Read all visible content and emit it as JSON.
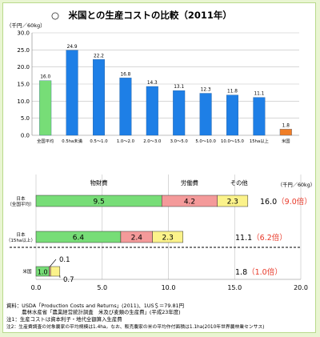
{
  "title": "○　米国との生産コストの比較（2011年）",
  "colors": {
    "bar_blue": "#1e7fe6",
    "bar_green": "#77dd77",
    "bar_orange": "#f07e26",
    "seg_material": "#77dd77",
    "seg_labor": "#f49a9a",
    "seg_other": "#fbf28a",
    "accent_red": "#e83828",
    "grid": "#bfbfbf"
  },
  "chart_data": [
    {
      "type": "bar",
      "title": "",
      "ylabel": "（千円／60kg）",
      "ylim": [
        0,
        30
      ],
      "yticks": [
        "0.0",
        "5.0",
        "10.0",
        "15.0",
        "20.0",
        "25.0",
        "30.0"
      ],
      "categories": [
        "全国平均",
        "0.5ha未満",
        "0.5～1.0",
        "1.0～2.0",
        "2.0～3.0",
        "3.0～5.0",
        "5.0～10.0",
        "10.0～15.0",
        "15ha以上",
        "米国"
      ],
      "values": [
        16.0,
        24.9,
        22.2,
        16.8,
        14.3,
        13.1,
        12.3,
        11.8,
        11.1,
        1.8
      ],
      "value_labels": [
        "16.0",
        "24.9",
        "22.2",
        "16.8",
        "14.3",
        "13.1",
        "12.3",
        "11.8",
        "11.1",
        "1.8"
      ],
      "bar_colors": [
        "green",
        "blue",
        "blue",
        "blue",
        "blue",
        "blue",
        "blue",
        "blue",
        "blue",
        "orange"
      ],
      "grid": true
    },
    {
      "type": "bar",
      "orientation": "horizontal",
      "stacked": true,
      "unit": "（千円／60kg）",
      "xlim": [
        0,
        20
      ],
      "xticks": [
        "0.0",
        "5.0",
        "10.0",
        "15.0",
        "20.0"
      ],
      "series_names": [
        "物財費",
        "労働費",
        "その他"
      ],
      "rows": [
        {
          "label_lines": [
            "日本",
            "（全国平均）"
          ],
          "values": [
            9.5,
            4.2,
            2.3
          ],
          "value_labels": [
            "9.5",
            "4.2",
            "2.3"
          ],
          "total": "16.0",
          "ratio": "（9.0倍）"
        },
        {
          "label_lines": [
            "日本",
            "（15ha以上）"
          ],
          "values": [
            6.4,
            2.4,
            2.3
          ],
          "value_labels": [
            "6.4",
            "2.4",
            "2.3"
          ],
          "total": "11.1",
          "ratio": "（6.2倍）"
        },
        {
          "label_lines": [
            "米国"
          ],
          "values": [
            1.0,
            0.1,
            0.7
          ],
          "value_labels": [
            "1.0",
            "0.1",
            "0.7"
          ],
          "total": "1.8",
          "ratio": "（1.0倍）"
        }
      ],
      "grid": true
    }
  ],
  "notes": [
    "資料：USDA「Production  Costs and Returns」(2011)、1US＄＝79.81円",
    "　　　農林水産省「農業経営統計調査　米及び麦類の生産費」(平成23年度)",
    "注1：生産コストは資本利子・地代全額算入生産費",
    "注2：生産費調査の対象農家の平均規模は1.4ha。なお、販売農家の米の平均作付面積は1.1ha(2010年世界農林業センサス)"
  ]
}
